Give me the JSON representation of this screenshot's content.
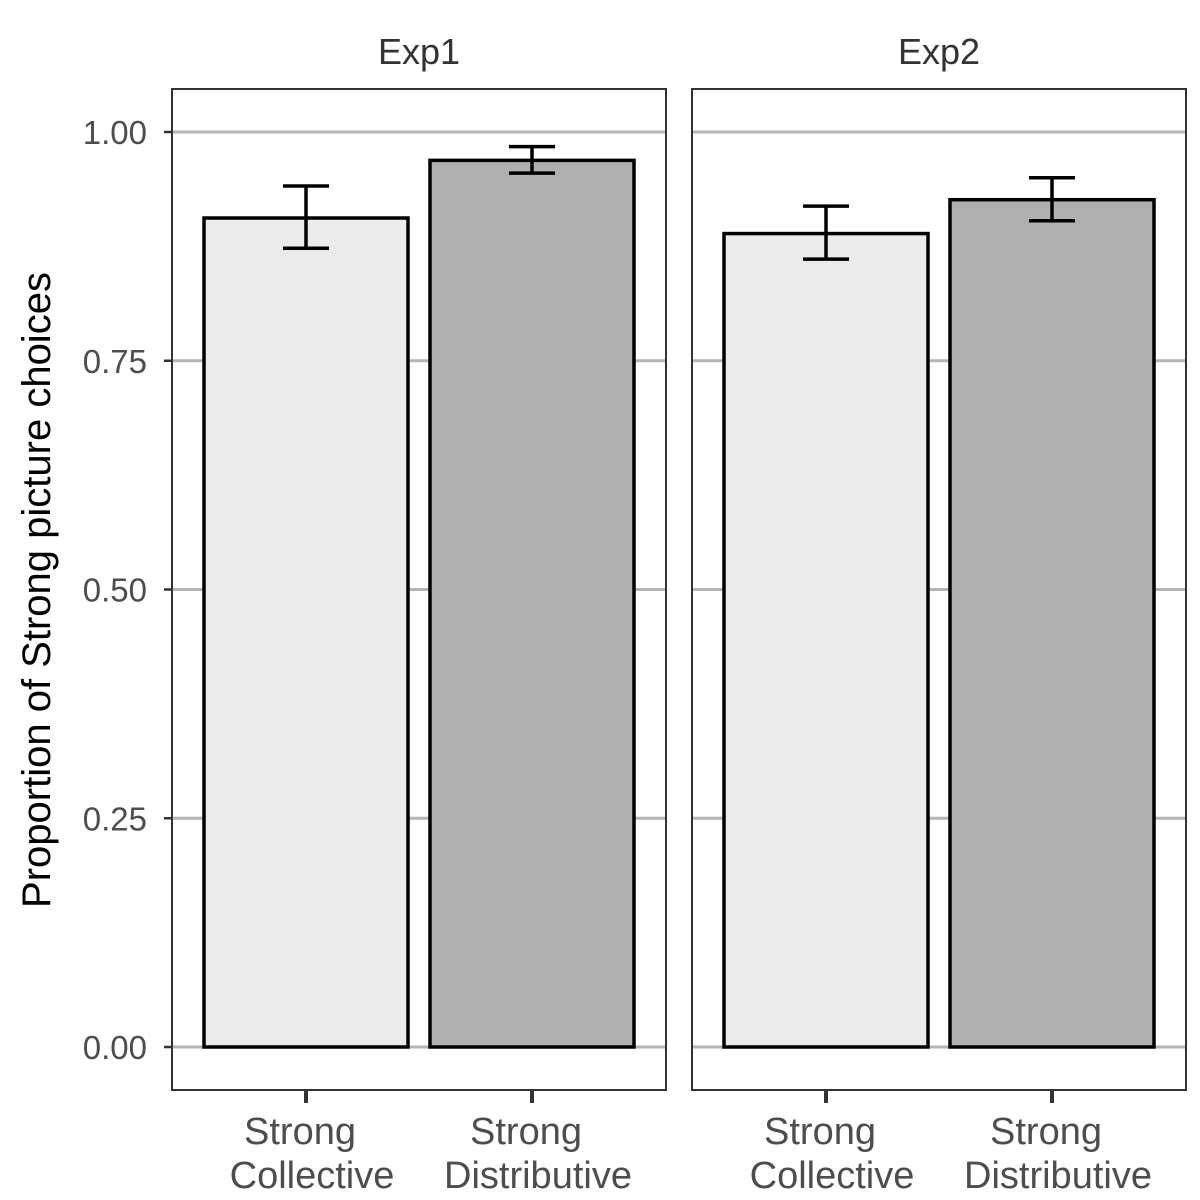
{
  "chart_data": {
    "type": "bar",
    "ylabel": "Proportion of Strong picture choices",
    "ylim": [
      0,
      1.05
    ],
    "yticks": [
      "0.00",
      "0.25",
      "0.50",
      "0.75",
      "1.00"
    ],
    "grid": "horizontal major lines",
    "colors": {
      "Strong Collective": "#ebebeb",
      "Strong Distributive": "#b0b0b0",
      "grid": "#b5b5b5",
      "outline": "#000000"
    },
    "facets": [
      {
        "title": "Exp1",
        "categories": [
          {
            "line1": "Strong",
            "line2": "Collective"
          },
          {
            "line1": "Strong",
            "line2": "Distributive"
          }
        ],
        "values": [
          0.906,
          0.969
        ],
        "error_low": [
          0.873,
          0.955
        ],
        "error_high": [
          0.941,
          0.984
        ]
      },
      {
        "title": "Exp2",
        "categories": [
          {
            "line1": "Strong",
            "line2": "Collective"
          },
          {
            "line1": "Strong",
            "line2": "Distributive"
          }
        ],
        "values": [
          0.889,
          0.926
        ],
        "error_low": [
          0.861,
          0.903
        ],
        "error_high": [
          0.919,
          0.95
        ]
      }
    ]
  }
}
